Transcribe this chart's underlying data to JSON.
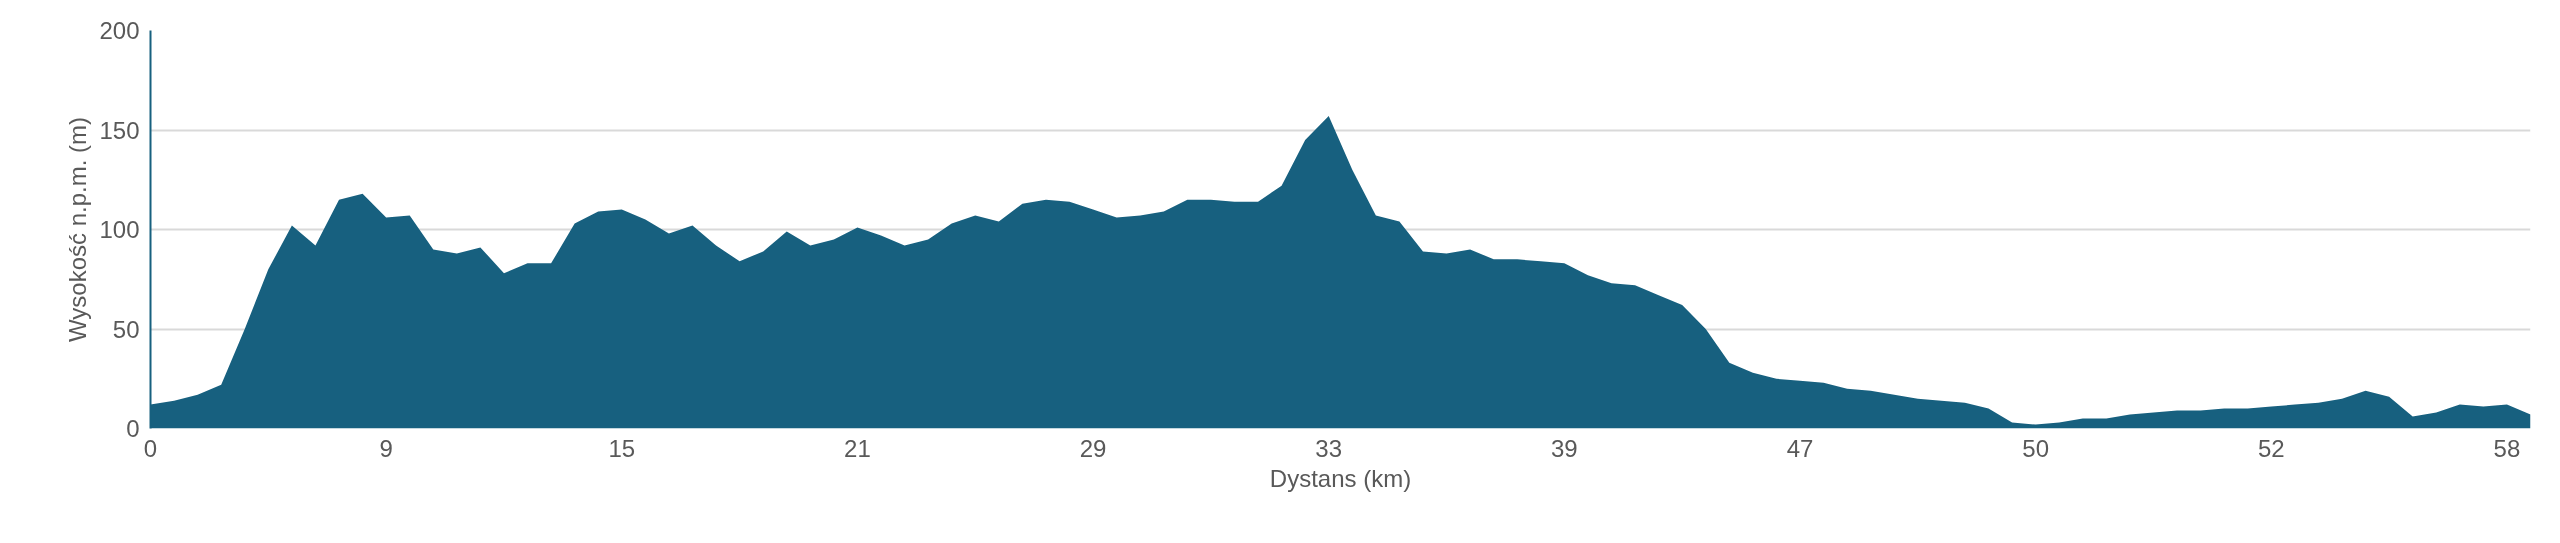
{
  "chart_data": {
    "type": "area",
    "xlabel": "Dystans (km)",
    "ylabel": "Wysokość n.p.m. (m)",
    "categories": [
      "0",
      null,
      null,
      null,
      null,
      null,
      null,
      null,
      null,
      null,
      "9",
      null,
      null,
      null,
      null,
      null,
      null,
      null,
      null,
      null,
      "15",
      null,
      null,
      null,
      null,
      null,
      null,
      null,
      null,
      null,
      "21",
      null,
      null,
      null,
      null,
      null,
      null,
      null,
      null,
      null,
      "29",
      null,
      null,
      null,
      null,
      null,
      null,
      null,
      null,
      null,
      "33",
      null,
      null,
      null,
      null,
      null,
      null,
      null,
      null,
      null,
      "39",
      null,
      null,
      null,
      null,
      null,
      null,
      null,
      null,
      null,
      "47",
      null,
      null,
      null,
      null,
      null,
      null,
      null,
      null,
      null,
      "50",
      null,
      null,
      null,
      null,
      null,
      null,
      null,
      null,
      null,
      "52",
      null,
      null,
      null,
      null,
      null,
      null,
      null,
      null,
      null,
      "58",
      null
    ],
    "series": [
      {
        "color": "#17607f",
        "values": [
          12,
          14,
          17,
          22,
          50,
          80,
          102,
          92,
          115,
          118,
          106,
          107,
          90,
          88,
          91,
          78,
          83,
          83,
          103,
          109,
          110,
          105,
          98,
          102,
          92,
          84,
          89,
          99,
          92,
          95,
          101,
          97,
          92,
          95,
          103,
          107,
          104,
          113,
          115,
          114,
          110,
          106,
          107,
          109,
          115,
          115,
          114,
          114,
          122,
          145,
          157,
          130,
          107,
          104,
          89,
          88,
          90,
          85,
          85,
          84,
          83,
          77,
          73,
          72,
          67,
          62,
          50,
          33,
          28,
          25,
          24,
          23,
          20,
          19,
          17,
          15,
          14,
          13,
          10,
          3,
          2,
          3,
          5,
          5,
          7,
          8,
          9,
          9,
          10,
          10,
          11,
          12,
          13,
          15,
          19,
          16,
          6,
          8,
          12,
          11,
          12,
          7
        ]
      }
    ],
    "ylim": [
      0,
      200
    ],
    "yticks": [
      0,
      50,
      100,
      150,
      200
    ],
    "grid": "y"
  }
}
